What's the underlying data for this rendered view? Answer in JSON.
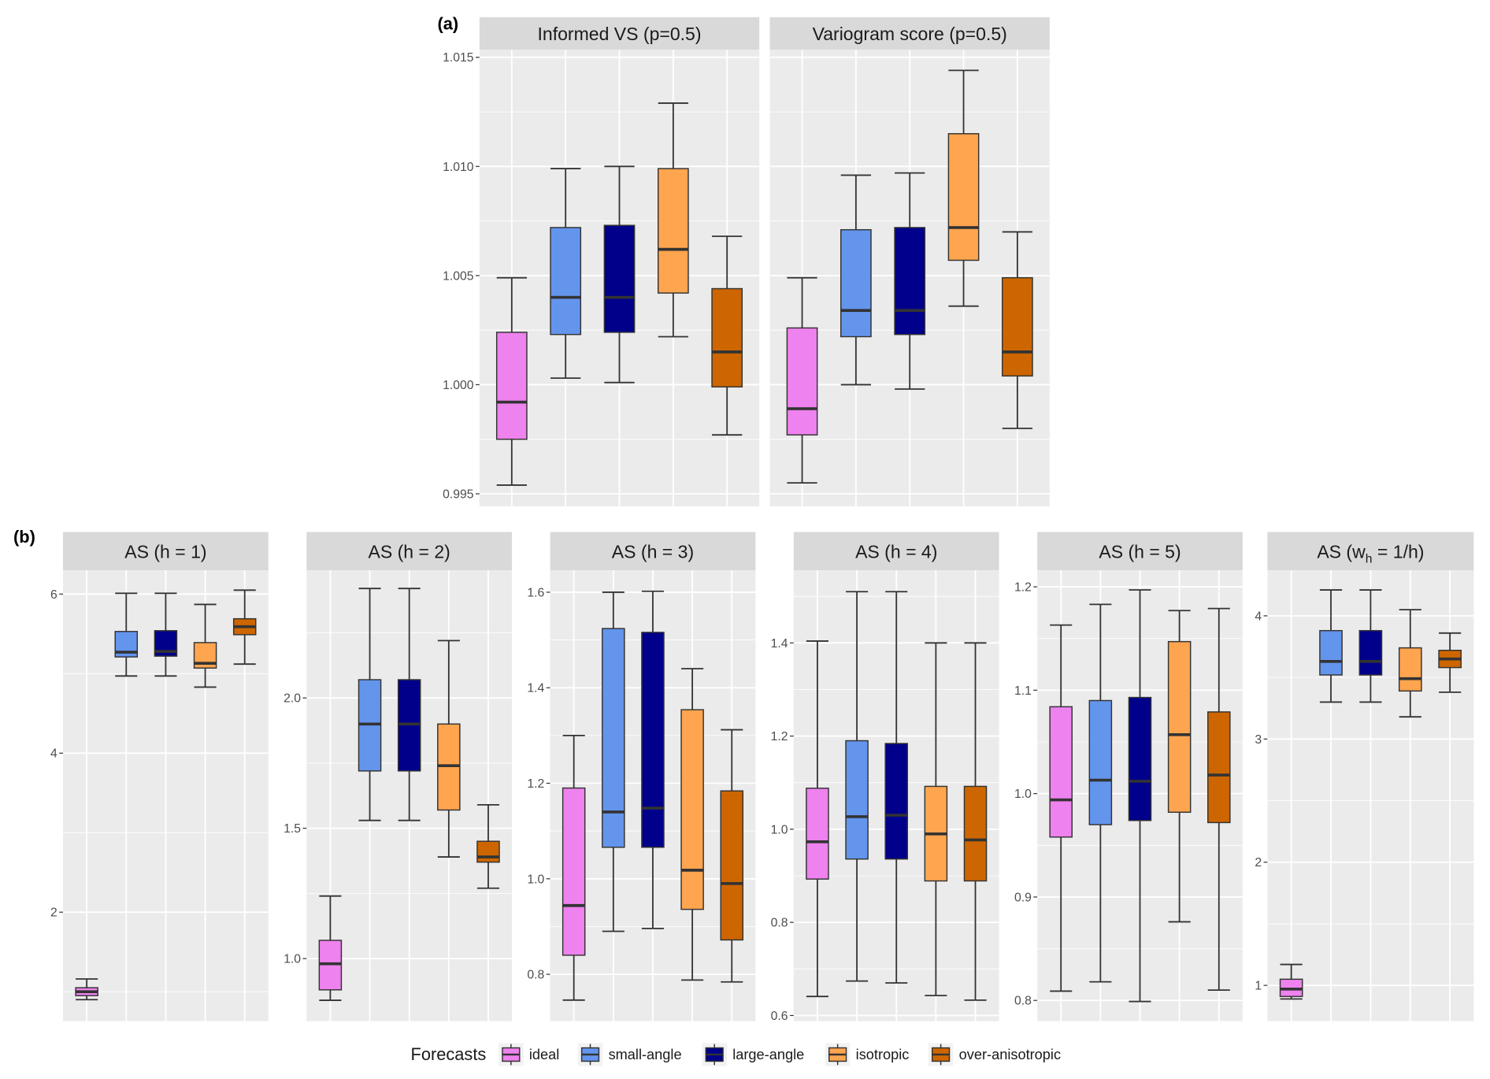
{
  "chart_data": {
    "type": "boxplot",
    "legend": {
      "title": "Forecasts",
      "placement": "bottom",
      "entries": [
        "ideal",
        "small-angle",
        "large-angle",
        "isotropic",
        "over-anisotropic"
      ],
      "colors": [
        "#EE82EE",
        "#6495ED",
        "#00008B",
        "#FFA54F",
        "#CD6600"
      ]
    },
    "median_color": "#333333",
    "groups": [
      {
        "label": "(a)",
        "panels": [
          {
            "title": "Informed VS (p=0.5)",
            "ylim": [
              0.99443,
              1.01535
            ],
            "ticks": [
              0.995,
              1.0,
              1.005,
              1.01,
              1.015
            ],
            "tick_labels": [
              "0.995",
              "1.000",
              "1.005",
              "1.010",
              "1.015"
            ],
            "boxes": [
              {
                "min": 0.9954,
                "q1": 0.9975,
                "median": 0.9992,
                "q3": 1.0024,
                "max": 1.0049
              },
              {
                "min": 1.0003,
                "q1": 1.0023,
                "median": 1.004,
                "q3": 1.0072,
                "max": 1.0099
              },
              {
                "min": 1.0001,
                "q1": 1.0024,
                "median": 1.004,
                "q3": 1.0073,
                "max": 1.01
              },
              {
                "min": 1.0022,
                "q1": 1.0042,
                "median": 1.0062,
                "q3": 1.0099,
                "max": 1.0129
              },
              {
                "min": 0.9977,
                "q1": 0.9999,
                "median": 1.0015,
                "q3": 1.0044,
                "max": 1.0068
              }
            ]
          },
          {
            "title": "Variogram score (p=0.5)",
            "ylim": [
              0.99443,
              1.01535
            ],
            "ticks": [
              0.995,
              1.0,
              1.005,
              1.01,
              1.015
            ],
            "tick_labels": [],
            "boxes": [
              {
                "min": 0.9955,
                "q1": 0.9977,
                "median": 0.9989,
                "q3": 1.0026,
                "max": 1.0049
              },
              {
                "min": 1.0,
                "q1": 1.0022,
                "median": 1.0034,
                "q3": 1.0071,
                "max": 1.0096
              },
              {
                "min": 0.9998,
                "q1": 1.0023,
                "median": 1.0034,
                "q3": 1.0072,
                "max": 1.0097
              },
              {
                "min": 1.0036,
                "q1": 1.0057,
                "median": 1.0072,
                "q3": 1.0115,
                "max": 1.0144
              },
              {
                "min": 0.998,
                "q1": 1.0004,
                "median": 1.0015,
                "q3": 1.0049,
                "max": 1.007
              }
            ]
          }
        ]
      },
      {
        "label": "(b)",
        "panels": [
          {
            "title": "AS (h = 1)",
            "ylim": [
              0.63,
              6.3
            ],
            "ticks": [
              2,
              4,
              6
            ],
            "tick_labels": [
              "2",
              "4",
              "6"
            ],
            "boxes": [
              {
                "min": 0.9,
                "q1": 0.95,
                "median": 1.0,
                "q3": 1.05,
                "max": 1.16
              },
              {
                "min": 4.97,
                "q1": 5.21,
                "median": 5.27,
                "q3": 5.53,
                "max": 6.01
              },
              {
                "min": 4.97,
                "q1": 5.22,
                "median": 5.28,
                "q3": 5.54,
                "max": 6.01
              },
              {
                "min": 4.83,
                "q1": 5.07,
                "median": 5.13,
                "q3": 5.39,
                "max": 5.87
              },
              {
                "min": 5.12,
                "q1": 5.49,
                "median": 5.59,
                "q3": 5.69,
                "max": 6.05
              }
            ]
          },
          {
            "title": "AS (h = 2)",
            "ylim": [
              0.76,
              2.49
            ],
            "ticks": [
              1.0,
              1.5,
              2.0
            ],
            "tick_labels": [
              "1.0",
              "1.5",
              "2.0"
            ],
            "boxes": [
              {
                "min": 0.84,
                "q1": 0.88,
                "median": 0.98,
                "q3": 1.07,
                "max": 1.24
              },
              {
                "min": 1.53,
                "q1": 1.72,
                "median": 1.9,
                "q3": 2.07,
                "max": 2.42
              },
              {
                "min": 1.53,
                "q1": 1.72,
                "median": 1.9,
                "q3": 2.07,
                "max": 2.42
              },
              {
                "min": 1.39,
                "q1": 1.57,
                "median": 1.74,
                "q3": 1.9,
                "max": 2.22
              },
              {
                "min": 1.27,
                "q1": 1.37,
                "median": 1.39,
                "q3": 1.45,
                "max": 1.59
              }
            ]
          },
          {
            "title": "AS (h = 3)",
            "ylim": [
              0.702,
              1.646
            ],
            "ticks": [
              0.8,
              1.0,
              1.2,
              1.4,
              1.6
            ],
            "tick_labels": [
              "0.8",
              "1.0",
              "1.2",
              "1.4",
              "1.6"
            ],
            "boxes": [
              {
                "min": 0.746,
                "q1": 0.84,
                "median": 0.944,
                "q3": 1.19,
                "max": 1.3
              },
              {
                "min": 0.89,
                "q1": 1.066,
                "median": 1.14,
                "q3": 1.524,
                "max": 1.6
              },
              {
                "min": 0.896,
                "q1": 1.066,
                "median": 1.148,
                "q3": 1.516,
                "max": 1.602
              },
              {
                "min": 0.788,
                "q1": 0.936,
                "median": 1.018,
                "q3": 1.354,
                "max": 1.44
              },
              {
                "min": 0.784,
                "q1": 0.872,
                "median": 0.99,
                "q3": 1.184,
                "max": 1.312
              }
            ]
          },
          {
            "title": "AS (h = 4)",
            "ylim": [
              0.588,
              1.556
            ],
            "ticks": [
              0.6,
              0.8,
              1.0,
              1.2,
              1.4
            ],
            "tick_labels": [
              "0.6",
              "0.8",
              "1.0",
              "1.2",
              "1.4"
            ],
            "boxes": [
              {
                "min": 0.641,
                "q1": 0.893,
                "median": 0.973,
                "q3": 1.088,
                "max": 1.404
              },
              {
                "min": 0.674,
                "q1": 0.936,
                "median": 1.027,
                "q3": 1.19,
                "max": 1.51
              },
              {
                "min": 0.67,
                "q1": 0.936,
                "median": 1.03,
                "q3": 1.184,
                "max": 1.51
              },
              {
                "min": 0.643,
                "q1": 0.889,
                "median": 0.99,
                "q3": 1.092,
                "max": 1.4
              },
              {
                "min": 0.633,
                "q1": 0.889,
                "median": 0.977,
                "q3": 1.092,
                "max": 1.4
              }
            ]
          },
          {
            "title": "AS (h = 5)",
            "ylim": [
              0.78,
              1.216
            ],
            "ticks": [
              0.8,
              0.9,
              1.0,
              1.1,
              1.2
            ],
            "tick_labels": [
              "0.8",
              "0.9",
              "1.0",
              "1.1",
              "1.2"
            ],
            "boxes": [
              {
                "min": 0.809,
                "q1": 0.958,
                "median": 0.994,
                "q3": 1.084,
                "max": 1.163
              },
              {
                "min": 0.818,
                "q1": 0.97,
                "median": 1.013,
                "q3": 1.09,
                "max": 1.183
              },
              {
                "min": 0.799,
                "q1": 0.974,
                "median": 1.012,
                "q3": 1.093,
                "max": 1.197
              },
              {
                "min": 0.876,
                "q1": 0.982,
                "median": 1.057,
                "q3": 1.147,
                "max": 1.177
              },
              {
                "min": 0.81,
                "q1": 0.972,
                "median": 1.018,
                "q3": 1.079,
                "max": 1.179
              }
            ]
          },
          {
            "title": "AS (w",
            "title_sub": "h",
            "title_end": " = 1/h)",
            "ylim": [
              0.71,
              4.37
            ],
            "ticks": [
              1,
              2,
              3,
              4
            ],
            "tick_labels": [
              "1",
              "2",
              "3",
              "4"
            ],
            "boxes": [
              {
                "min": 0.89,
                "q1": 0.91,
                "median": 0.97,
                "q3": 1.05,
                "max": 1.17
              },
              {
                "min": 3.3,
                "q1": 3.52,
                "median": 3.63,
                "q3": 3.88,
                "max": 4.21
              },
              {
                "min": 3.3,
                "q1": 3.52,
                "median": 3.63,
                "q3": 3.88,
                "max": 4.21
              },
              {
                "min": 3.18,
                "q1": 3.39,
                "median": 3.49,
                "q3": 3.74,
                "max": 4.05
              },
              {
                "min": 3.38,
                "q1": 3.58,
                "median": 3.65,
                "q3": 3.72,
                "max": 3.86
              }
            ]
          }
        ]
      }
    ]
  }
}
